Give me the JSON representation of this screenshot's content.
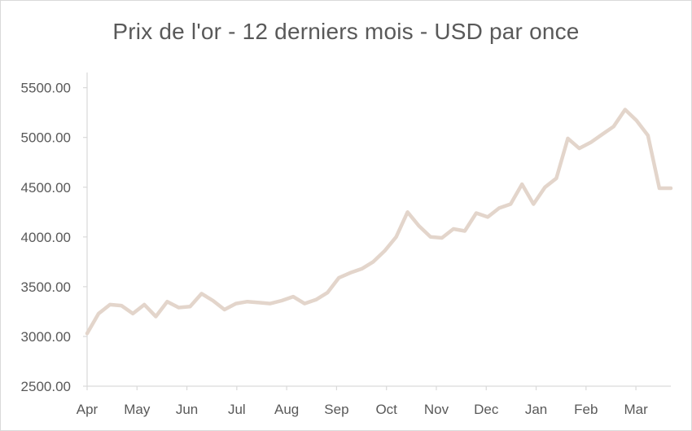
{
  "chart_data": {
    "type": "line",
    "title": "Prix de l'or - 12 derniers mois - USD par once",
    "xlabel": "",
    "ylabel": "",
    "ylim": [
      2500,
      5800
    ],
    "yticks": [
      2500,
      3000,
      3500,
      4000,
      4500,
      5000,
      5500
    ],
    "ytick_labels": [
      "2500.00",
      "3000.00",
      "3500.00",
      "4000.00",
      "4500.00",
      "5000.00",
      "5500.00"
    ],
    "month_labels": [
      "Apr",
      "May",
      "Jun",
      "Jul",
      "Aug",
      "Sep",
      "Oct",
      "Nov",
      "Dec",
      "Jan",
      "Feb",
      "Mar"
    ],
    "grid": false,
    "legend": "none",
    "line_color": "#e3d5cb",
    "series": [
      {
        "values": [
          3030,
          3230,
          3320,
          3310,
          3230,
          3320,
          3200,
          3350,
          3290,
          3300,
          3430,
          3360,
          3270,
          3330,
          3350,
          3340,
          3330,
          3360,
          3400,
          3330,
          3370,
          3440,
          3590,
          3640,
          3680,
          3750,
          3860,
          4000,
          4250,
          4110,
          4000,
          3990,
          4080,
          4060,
          4240,
          4200,
          4290,
          4330,
          4530,
          4330,
          4500,
          4590,
          4990,
          4890,
          4950,
          5030,
          5110,
          5280,
          5170,
          5020,
          4490,
          4490
        ]
      }
    ]
  }
}
